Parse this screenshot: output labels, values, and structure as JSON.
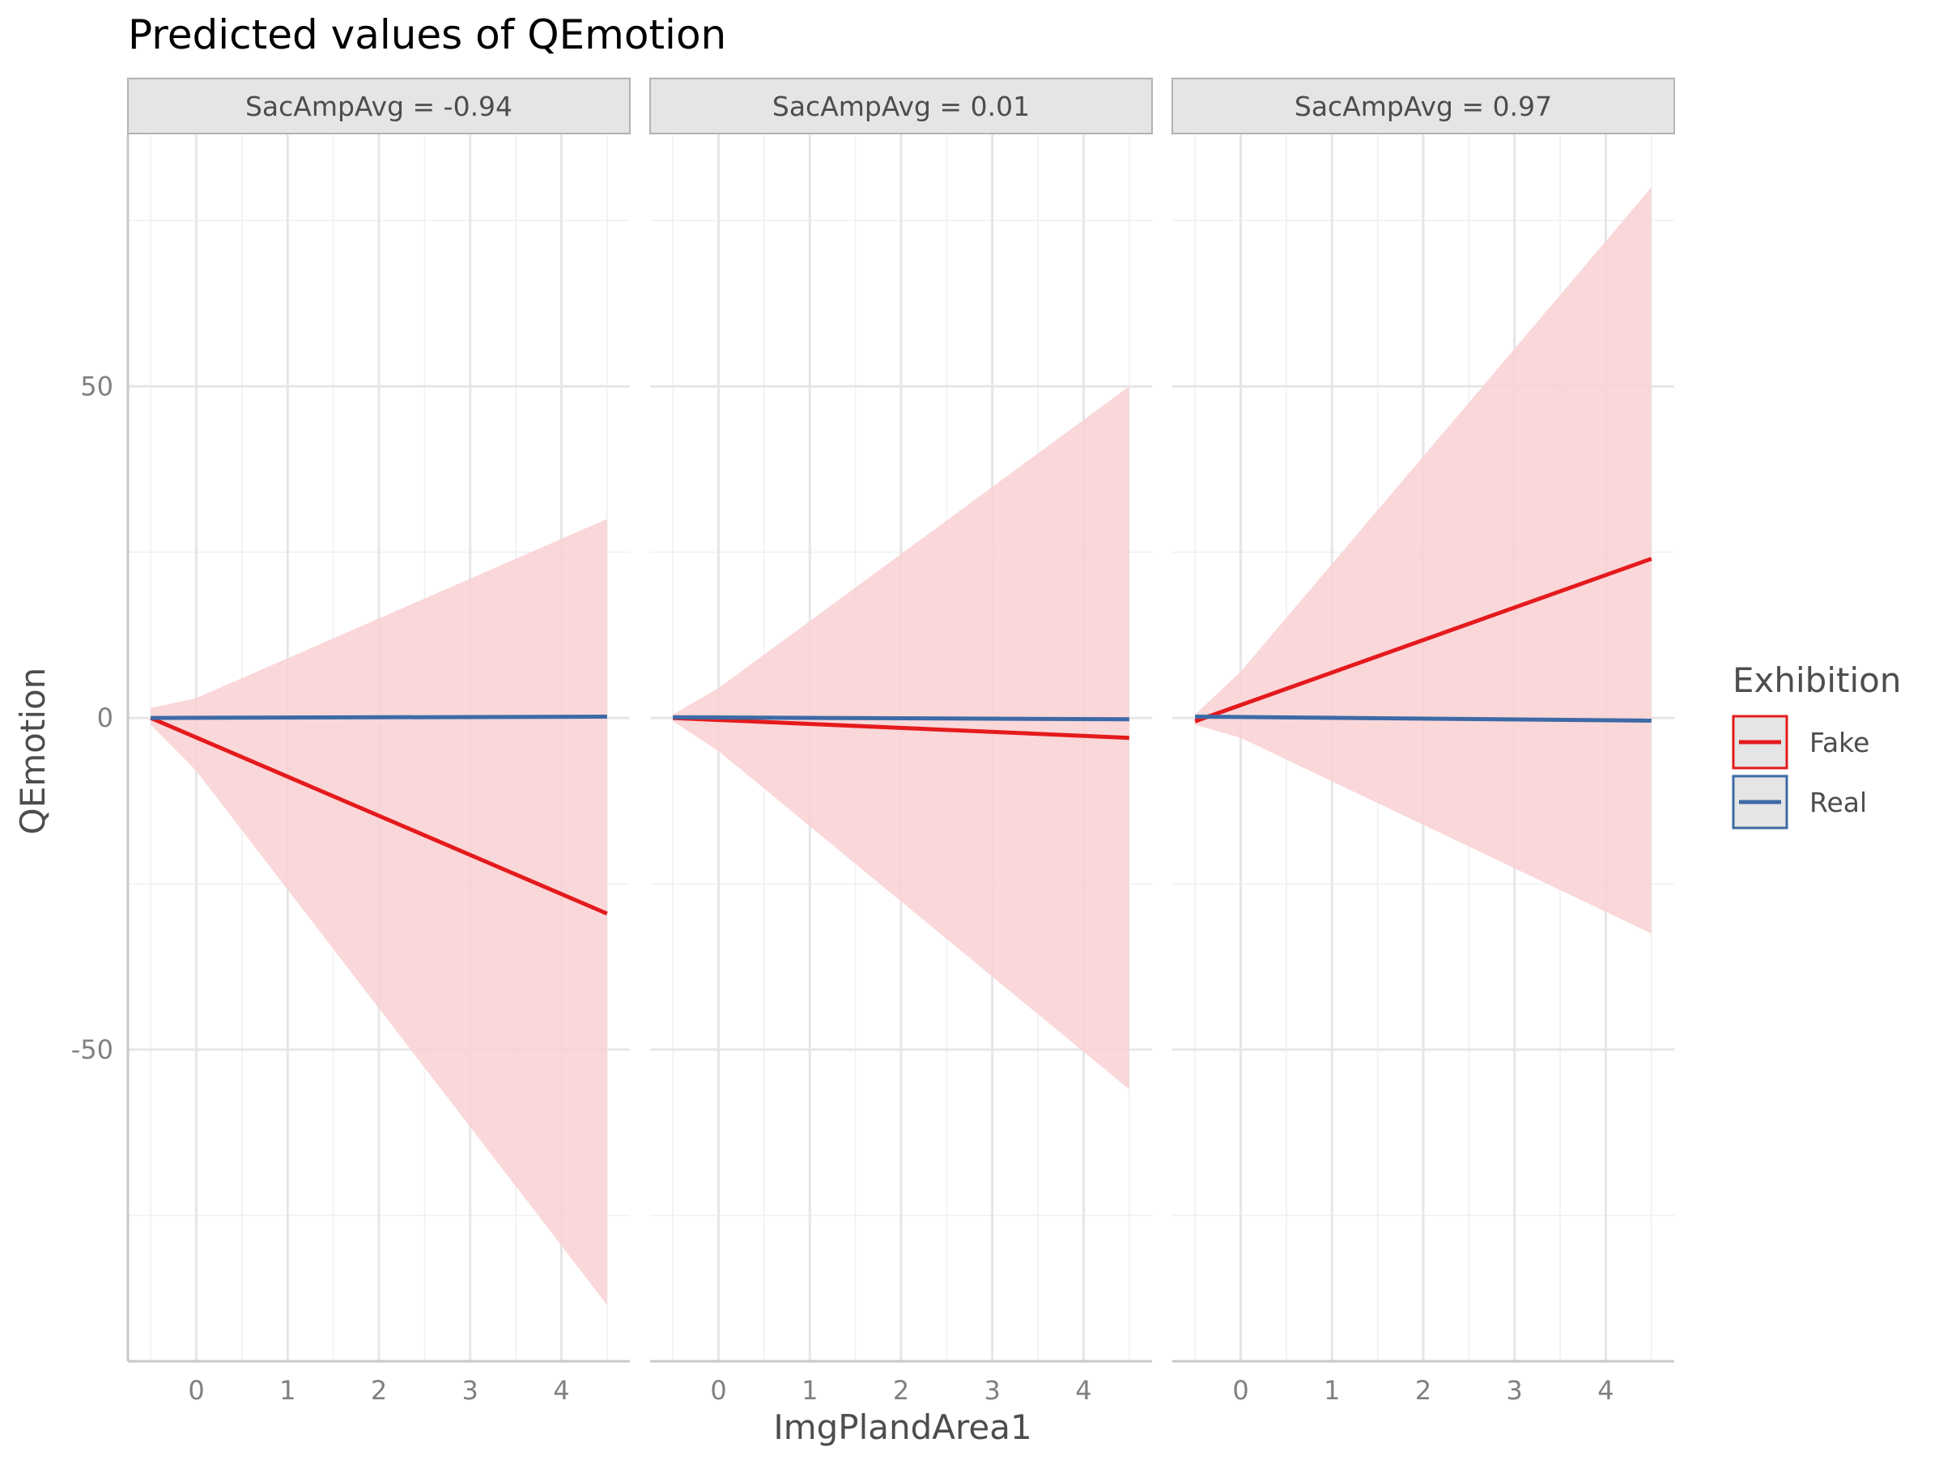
{
  "chart_data": {
    "type": "line",
    "title": "Predicted values of QEmotion",
    "xlabel": "ImgPlandArea1",
    "ylabel": "QEmotion",
    "xlim": [
      -0.75,
      4.75
    ],
    "ylim": [
      -97,
      88
    ],
    "x_ticks": [
      0,
      1,
      2,
      3,
      4
    ],
    "x_tick_labels": [
      "0",
      "1",
      "2",
      "3",
      "4"
    ],
    "y_ticks": [
      -50,
      0,
      50
    ],
    "y_tick_labels": [
      "-50",
      "0",
      "50"
    ],
    "grid": true,
    "legend": {
      "title": "Exhibition",
      "placement": "right",
      "entries": [
        {
          "label": "Fake",
          "color": "#e41a1c",
          "fill": "#f9d0d2"
        },
        {
          "label": "Real",
          "color": "#3d6aa6",
          "fill": "#d3e0ef"
        }
      ]
    },
    "panels": [
      {
        "label": "SacAmpAvg = -0.94",
        "series": [
          {
            "name": "Fake",
            "x": [
              -0.5,
              4.5
            ],
            "y": [
              0.0,
              -29.5
            ],
            "ci_lower_x": [
              -0.5,
              0,
              4.5
            ],
            "ci_lower": [
              -1.0,
              -8.0,
              -88.5
            ],
            "ci_upper_x": [
              -0.5,
              0,
              4.5
            ],
            "ci_upper": [
              1.5,
              3.0,
              30.0
            ]
          },
          {
            "name": "Real",
            "x": [
              -0.5,
              4.5
            ],
            "y": [
              0.0,
              0.2
            ]
          }
        ]
      },
      {
        "label": "SacAmpAvg = 0.01",
        "series": [
          {
            "name": "Fake",
            "x": [
              -0.5,
              4.5
            ],
            "y": [
              0.0,
              -3.0
            ],
            "ci_lower_x": [
              -0.5,
              0,
              4.5
            ],
            "ci_lower": [
              -0.5,
              -5.0,
              -56.0
            ],
            "ci_upper_x": [
              -0.5,
              0,
              4.5
            ],
            "ci_upper": [
              0.5,
              4.5,
              50.0
            ]
          },
          {
            "name": "Real",
            "x": [
              -0.5,
              4.5
            ],
            "y": [
              0.1,
              -0.2
            ]
          }
        ]
      },
      {
        "label": "SacAmpAvg = 0.97",
        "series": [
          {
            "name": "Fake",
            "x": [
              -0.5,
              4.5
            ],
            "y": [
              -0.5,
              24.0
            ],
            "ci_lower_x": [
              -0.5,
              0,
              4.5
            ],
            "ci_lower": [
              -1.0,
              -3.0,
              -32.5
            ],
            "ci_upper_x": [
              -0.5,
              0,
              4.5
            ],
            "ci_upper": [
              0.5,
              7.0,
              80.0
            ]
          },
          {
            "name": "Real",
            "x": [
              -0.5,
              4.5
            ],
            "y": [
              0.2,
              -0.4
            ]
          }
        ]
      }
    ]
  }
}
